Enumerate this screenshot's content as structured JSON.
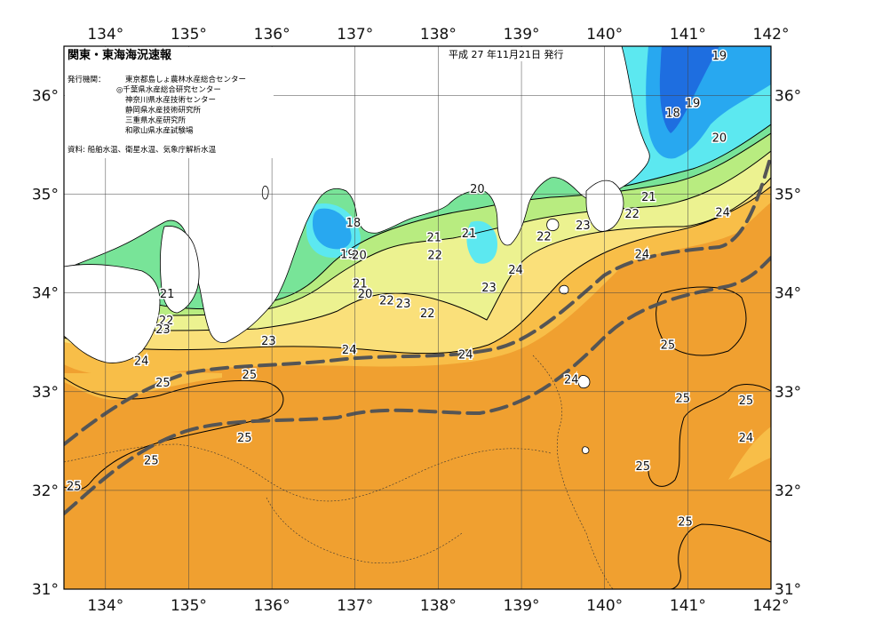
{
  "header": {
    "title": "関東・東海海況速報",
    "date": "平成 27 年11月21日 発行",
    "issuer_label": "発行機関：",
    "issuers": [
      "東京都島しょ農林水産総合センター",
      "◎千葉県水産総合研究センター",
      "神奈川県水産技術センター",
      "静岡県水産技術研究所",
      "三重県水産研究所",
      "和歌山県水産試験場"
    ],
    "source": "資料: 船舶水温、衛星水温、気象庁解析水温"
  },
  "axes": {
    "lon_labels": [
      "134°",
      "135°",
      "136°",
      "137°",
      "138°",
      "139°",
      "140°",
      "141°",
      "142°"
    ],
    "lat_labels": [
      "36°",
      "35°",
      "34°",
      "33°",
      "32°",
      "31°"
    ],
    "lon_range": [
      133.5,
      142
    ],
    "lat_range": [
      31,
      36.5
    ]
  },
  "colors": {
    "t25": "#f0a030",
    "t24": "#f8be48",
    "t23": "#fae07a",
    "t22": "#ecf290",
    "t21": "#b8ec80",
    "t20": "#78e498",
    "t19": "#5ce8f0",
    "t18": "#28a8f0",
    "t17": "#1e6ee0",
    "kuroshio": "#555555"
  },
  "isotherm_labels": [
    {
      "text": "19",
      "lon": 141.38,
      "lat": 36.4
    },
    {
      "text": "19",
      "lon": 141.06,
      "lat": 35.92
    },
    {
      "text": "18",
      "lon": 140.82,
      "lat": 35.82
    },
    {
      "text": "20",
      "lon": 141.38,
      "lat": 35.57
    },
    {
      "text": "20",
      "lon": 138.47,
      "lat": 35.05
    },
    {
      "text": "21",
      "lon": 140.53,
      "lat": 34.97
    },
    {
      "text": "22",
      "lon": 140.33,
      "lat": 34.8
    },
    {
      "text": "24",
      "lon": 141.42,
      "lat": 34.81
    },
    {
      "text": "18",
      "lon": 136.98,
      "lat": 34.71
    },
    {
      "text": "22",
      "lon": 139.27,
      "lat": 34.57
    },
    {
      "text": "23",
      "lon": 139.74,
      "lat": 34.68
    },
    {
      "text": "21",
      "lon": 137.95,
      "lat": 34.56
    },
    {
      "text": "21",
      "lon": 138.37,
      "lat": 34.6
    },
    {
      "text": "19",
      "lon": 136.91,
      "lat": 34.39
    },
    {
      "text": "20",
      "lon": 137.05,
      "lat": 34.38
    },
    {
      "text": "22",
      "lon": 137.96,
      "lat": 34.38
    },
    {
      "text": "24",
      "lon": 140.45,
      "lat": 34.39
    },
    {
      "text": "24",
      "lon": 138.93,
      "lat": 34.23
    },
    {
      "text": "23",
      "lon": 138.61,
      "lat": 34.05
    },
    {
      "text": "21",
      "lon": 137.06,
      "lat": 34.09
    },
    {
      "text": "20",
      "lon": 137.12,
      "lat": 33.99
    },
    {
      "text": "22",
      "lon": 137.38,
      "lat": 33.92
    },
    {
      "text": "23",
      "lon": 137.58,
      "lat": 33.89
    },
    {
      "text": "22",
      "lon": 137.87,
      "lat": 33.79
    },
    {
      "text": "21",
      "lon": 134.74,
      "lat": 33.99
    },
    {
      "text": "22",
      "lon": 134.73,
      "lat": 33.72
    },
    {
      "text": "23",
      "lon": 134.69,
      "lat": 33.63
    },
    {
      "text": "23",
      "lon": 135.96,
      "lat": 33.51
    },
    {
      "text": "24",
      "lon": 136.93,
      "lat": 33.42
    },
    {
      "text": "24",
      "lon": 138.33,
      "lat": 33.37
    },
    {
      "text": "25",
      "lon": 140.76,
      "lat": 33.47
    },
    {
      "text": "24",
      "lon": 134.43,
      "lat": 33.31
    },
    {
      "text": "25",
      "lon": 134.69,
      "lat": 33.09
    },
    {
      "text": "25",
      "lon": 135.73,
      "lat": 33.17
    },
    {
      "text": "24",
      "lon": 139.6,
      "lat": 33.12
    },
    {
      "text": "25",
      "lon": 140.94,
      "lat": 32.93
    },
    {
      "text": "25",
      "lon": 141.7,
      "lat": 32.91
    },
    {
      "text": "25",
      "lon": 135.67,
      "lat": 32.53
    },
    {
      "text": "24",
      "lon": 141.7,
      "lat": 32.53
    },
    {
      "text": "25",
      "lon": 134.55,
      "lat": 32.3
    },
    {
      "text": "25",
      "lon": 140.46,
      "lat": 32.24
    },
    {
      "text": "25",
      "lon": 133.62,
      "lat": 32.04
    },
    {
      "text": "25",
      "lon": 140.97,
      "lat": 31.68
    }
  ]
}
